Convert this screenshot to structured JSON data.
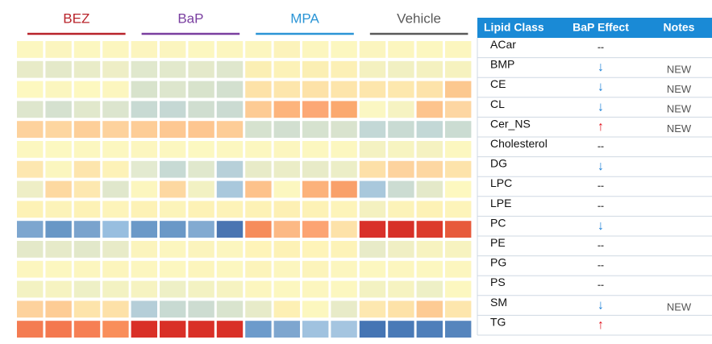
{
  "heatmap": {
    "groups": [
      {
        "name": "BEZ",
        "color": "#b8232a"
      },
      {
        "name": "BaP",
        "color": "#7a3fa0"
      },
      {
        "name": "MPA",
        "color": "#2b95d6"
      },
      {
        "name": "Vehicle",
        "color": "#5a5a5a"
      }
    ],
    "rows": [
      [
        "#fcf7c0",
        "#fbf5bf",
        "#fcf7c0",
        "#fcf6bf",
        "#fcf5bf",
        "#fbf5bf",
        "#fcf7c0",
        "#fcf6bf",
        "#fcf6bf",
        "#fcf3bb",
        "#fcf6bf",
        "#fcf7c0",
        "#fbf5bf",
        "#fcf6bf",
        "#fcf7c0",
        "#fcf6bf"
      ],
      [
        "#e8ebc8",
        "#e4e9c9",
        "#e9ecc8",
        "#eeeec6",
        "#e0e8cd",
        "#e2e9cc",
        "#e4e9ca",
        "#dfe7cd",
        "#fbefb4",
        "#fcf2b8",
        "#fbefb4",
        "#fcf0b6",
        "#f4f1c0",
        "#f1f0c2",
        "#f4f1c0",
        "#f6f2bf"
      ],
      [
        "#fdf8c0",
        "#fbf6bf",
        "#fdf8c0",
        "#fcf6bf",
        "#d8e3cc",
        "#dde6cd",
        "#d8e3cc",
        "#d3e0cf",
        "#fde2a8",
        "#fde6ac",
        "#fde2a8",
        "#fde5ab",
        "#fde6ac",
        "#fde8ae",
        "#fde3aa",
        "#fcc88f"
      ],
      [
        "#dee6cd",
        "#d5e1cf",
        "#e1e8cc",
        "#dce5ce",
        "#c8dad3",
        "#c5d8d4",
        "#d0ded0",
        "#cbdbd2",
        "#fdcb94",
        "#fdb47c",
        "#fca875",
        "#fba96f",
        "#fbf7c3",
        "#f6f3c2",
        "#fdc48d",
        "#fdd6a2"
      ],
      [
        "#fdd29d",
        "#fdd6a0",
        "#fdcf99",
        "#fdd29d",
        "#fdcd97",
        "#fdc892",
        "#fdc690",
        "#fdcd97",
        "#d6e2cf",
        "#d2dfd0",
        "#d6e2cf",
        "#d9e3ce",
        "#c3d8d6",
        "#c9dbd3",
        "#c3d8d6",
        "#cbdcd2"
      ],
      [
        "#fcf7c0",
        "#fcf8c1",
        "#fcf7c0",
        "#fcf7c0",
        "#fcf6bf",
        "#fcf7c0",
        "#fcf8c1",
        "#fcf7c0",
        "#fcf7c0",
        "#fcf6bf",
        "#fcf7c0",
        "#fcf7c0",
        "#f4f2c2",
        "#f7f4c1",
        "#f5f2c1",
        "#fcf7c0"
      ],
      [
        "#fde7b0",
        "#fbf6bf",
        "#fde5ad",
        "#fdf2b8",
        "#e3ead0",
        "#c7dad4",
        "#e0e8cd",
        "#b7d0d9",
        "#e8ebc8",
        "#ebedc7",
        "#e8ebc8",
        "#eceec7",
        "#fde0a8",
        "#fdd39e",
        "#fdd7a2",
        "#fde3ab"
      ],
      [
        "#eeeec6",
        "#fdd9a1",
        "#fde8b0",
        "#e0e7cc",
        "#fcf6bf",
        "#fdd8a1",
        "#f2f1c3",
        "#a9c8dc",
        "#fdc28b",
        "#fcf7c0",
        "#fcb27b",
        "#f9a06a",
        "#a9c8dc",
        "#ccdcd2",
        "#e4e9c9",
        "#fdf8c0"
      ],
      [
        "#fdf2b6",
        "#fcf3b9",
        "#fdf2b6",
        "#fdf4ba",
        "#fdf2b6",
        "#fcf4ba",
        "#fdf2b6",
        "#fdf3b8",
        "#fdf2b6",
        "#fdf0b4",
        "#fdf2b6",
        "#fdf4ba",
        "#f4f1c0",
        "#fcf3b9",
        "#fdf2b6",
        "#fdf4ba"
      ],
      [
        "#7da6cf",
        "#6897c6",
        "#7aa3cd",
        "#98bedf",
        "#6b99c8",
        "#6a98c7",
        "#82aad1",
        "#4a75b2",
        "#f68c5b",
        "#fcb985",
        "#fca473",
        "#fde2a9",
        "#d9312a",
        "#d73027",
        "#dc3b2c",
        "#e75a3b"
      ],
      [
        "#e4e9c9",
        "#e6eac9",
        "#e2e8ca",
        "#e8ebc8",
        "#fbf4bd",
        "#fcf6bf",
        "#fbf4bd",
        "#fcf6bf",
        "#fef4b9",
        "#fdf2b6",
        "#fef4b9",
        "#fdf3b8",
        "#e8ebc8",
        "#f0efc4",
        "#f7f3c0",
        "#f7f3c0"
      ],
      [
        "#fcf6bf",
        "#fcf7c0",
        "#fcf6bf",
        "#fcf5bd",
        "#fcf6bf",
        "#fcf7c0",
        "#fcf5bd",
        "#fcf7c0",
        "#fcf4bb",
        "#fcf6bf",
        "#fcf4bb",
        "#fcf6bf",
        "#fcf7c0",
        "#fcf6bf",
        "#fcf7c0",
        "#fcf6bf"
      ],
      [
        "#f3f2c2",
        "#f6f3c1",
        "#eef0c6",
        "#f3f2c2",
        "#f6f3c1",
        "#eef0c6",
        "#f3f2c2",
        "#f6f3c1",
        "#fcf6bf",
        "#fcf7c0",
        "#fcf6bf",
        "#fcf7c0",
        "#f3f2c2",
        "#f6f3c1",
        "#eef0c6",
        "#fcf7c0"
      ],
      [
        "#fdd29d",
        "#fdcc95",
        "#fde4ab",
        "#fde1a8",
        "#b5ced8",
        "#c8dad2",
        "#cddcd1",
        "#d9e4ce",
        "#e7ebc9",
        "#fdf0b4",
        "#fcf7bf",
        "#e8ebc8",
        "#fde8b0",
        "#fde2a8",
        "#fdcb94",
        "#fde6ad"
      ],
      [
        "#f47c52",
        "#f4784f",
        "#f67f54",
        "#f98e5a",
        "#d93027",
        "#d93027",
        "#d93027",
        "#d93027",
        "#6d9bcb",
        "#7ea6cf",
        "#a0c2df",
        "#a5c5e0",
        "#4575b4",
        "#4a7ab7",
        "#4f7fba",
        "#5685bd"
      ]
    ]
  },
  "table": {
    "header": [
      "Lipid Class",
      "BaP Effect",
      "Notes"
    ],
    "effect_colors": {
      "down": "#1a7fd6",
      "up": "#e0141e",
      "none": "#555555"
    },
    "rows": [
      {
        "class": "ACar",
        "effect": "--",
        "tone": "none",
        "note": null
      },
      {
        "class": "BMP",
        "effect": "↓",
        "tone": "down",
        "note": "NEW"
      },
      {
        "class": "CE",
        "effect": "↓",
        "tone": "down",
        "note": "NEW"
      },
      {
        "class": "CL",
        "effect": "↓",
        "tone": "down",
        "note": "NEW"
      },
      {
        "class": "Cer_NS",
        "effect": "↑",
        "tone": "up",
        "note": "NEW"
      },
      {
        "class": "Cholesterol",
        "effect": "--",
        "tone": "none",
        "note": null
      },
      {
        "class": "DG",
        "effect": "↓",
        "tone": "down",
        "note": null
      },
      {
        "class": "LPC",
        "effect": "--",
        "tone": "none",
        "note": null
      },
      {
        "class": "LPE",
        "effect": "--",
        "tone": "none",
        "note": null
      },
      {
        "class": "PC",
        "effect": "↓",
        "tone": "down",
        "note": null
      },
      {
        "class": "PE",
        "effect": "--",
        "tone": "none",
        "note": null
      },
      {
        "class": "PG",
        "effect": "--",
        "tone": "none",
        "note": null
      },
      {
        "class": "PS",
        "effect": "--",
        "tone": "none",
        "note": null
      },
      {
        "class": "SM",
        "effect": "↓",
        "tone": "down",
        "note": "NEW"
      },
      {
        "class": "TG",
        "effect": "↑",
        "tone": "up",
        "note": null
      }
    ]
  }
}
